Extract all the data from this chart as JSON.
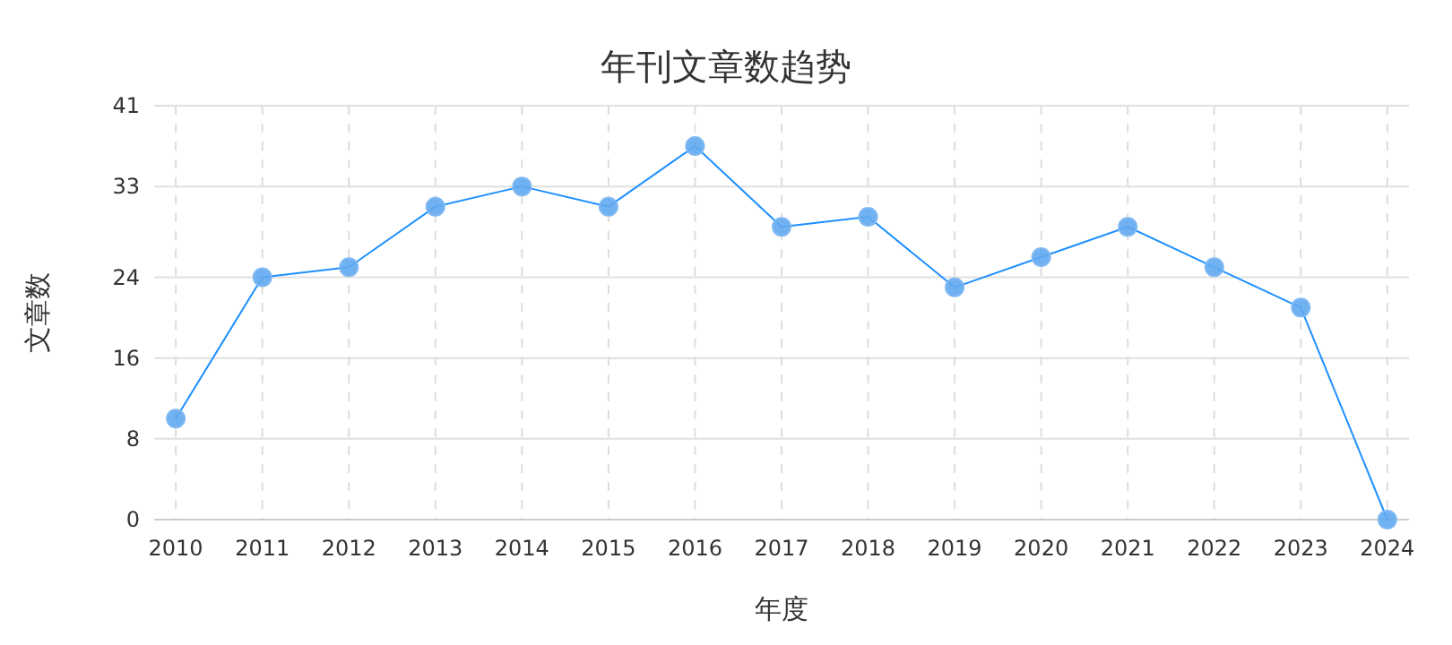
{
  "chart_data": {
    "type": "line",
    "title": "年刊文章数趋势",
    "xlabel": "年度",
    "ylabel": "文章数",
    "categories": [
      "2010",
      "2011",
      "2012",
      "2013",
      "2014",
      "2015",
      "2016",
      "2017",
      "2018",
      "2019",
      "2020",
      "2021",
      "2022",
      "2023",
      "2024"
    ],
    "series": [
      {
        "color": "#1e90ff",
        "values": [
          10,
          24,
          25,
          31,
          33,
          31,
          37,
          29,
          30,
          23,
          26,
          29,
          25,
          21,
          0
        ]
      }
    ],
    "ylim": [
      0,
      41
    ],
    "yticks": [
      0,
      8,
      16,
      24,
      33,
      41
    ],
    "grid": true,
    "marker": "circle",
    "line_style": "solid"
  }
}
